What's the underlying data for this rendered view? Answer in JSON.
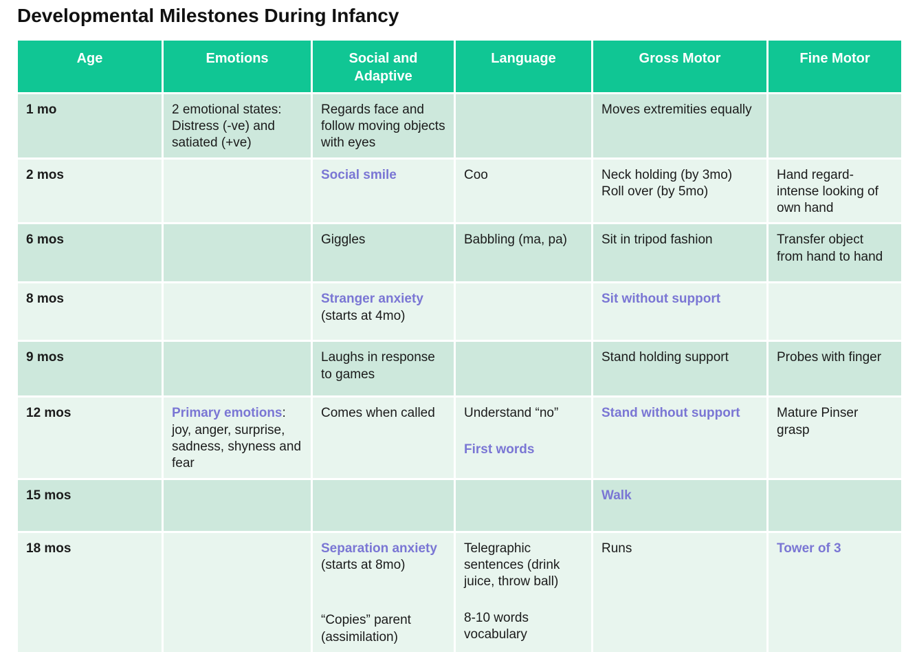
{
  "title": "Developmental Milestones During Infancy",
  "colors": {
    "header_bg": "#10c694",
    "row_alt1_bg": "#cde8dc",
    "row_alt2_bg": "#e8f5ee",
    "highlight_text": "#7a76d4",
    "header_text": "#ffffff",
    "body_text": "#1b1b1b"
  },
  "table": {
    "columns": [
      "Age",
      "Emotions",
      "Social and Adaptive",
      "Language",
      "Gross Motor",
      "Fine Motor"
    ],
    "rows": [
      {
        "age": "1 mo",
        "cells": [
          [
            {
              "segs": [
                {
                  "t": "2 emotional states: Distress (-ve) and satiated (+ve)"
                }
              ]
            }
          ],
          [
            {
              "segs": [
                {
                  "t": "Regards face and follow moving objects with eyes"
                }
              ]
            }
          ],
          [],
          [
            {
              "segs": [
                {
                  "t": "Moves extremities equally"
                }
              ]
            }
          ],
          []
        ]
      },
      {
        "age": "2 mos",
        "cells": [
          [],
          [
            {
              "segs": [
                {
                  "t": "Social smile",
                  "h": true
                }
              ]
            }
          ],
          [
            {
              "segs": [
                {
                  "t": "Coo"
                }
              ]
            }
          ],
          [
            {
              "segs": [
                {
                  "t": "Neck holding (by 3mo)"
                }
              ]
            },
            {
              "segs": [
                {
                  "t": "Roll over (by 5mo)"
                }
              ]
            }
          ],
          [
            {
              "segs": [
                {
                  "t": "Hand regard- intense looking of own hand"
                }
              ]
            }
          ]
        ]
      },
      {
        "age": "6 mos",
        "cells": [
          [],
          [
            {
              "segs": [
                {
                  "t": "Giggles"
                }
              ]
            }
          ],
          [
            {
              "segs": [
                {
                  "t": "Babbling (ma, pa)"
                }
              ]
            }
          ],
          [
            {
              "segs": [
                {
                  "t": "Sit in tripod fashion"
                }
              ]
            }
          ],
          [
            {
              "segs": [
                {
                  "t": "Transfer object from hand to hand"
                }
              ]
            }
          ]
        ]
      },
      {
        "age": "8 mos",
        "cells": [
          [],
          [
            {
              "segs": [
                {
                  "t": "Stranger anxiety",
                  "h": true
                }
              ]
            },
            {
              "segs": [
                {
                  "t": "(starts at 4mo)"
                }
              ]
            }
          ],
          [],
          [
            {
              "segs": [
                {
                  "t": "Sit without support",
                  "h": true
                }
              ]
            }
          ],
          []
        ]
      },
      {
        "age": "9 mos",
        "cells": [
          [],
          [
            {
              "segs": [
                {
                  "t": "Laughs in response to games"
                }
              ]
            }
          ],
          [],
          [
            {
              "segs": [
                {
                  "t": "Stand holding support"
                }
              ]
            }
          ],
          [
            {
              "segs": [
                {
                  "t": "Probes with finger"
                }
              ]
            }
          ]
        ]
      },
      {
        "age": "12 mos",
        "cells": [
          [
            {
              "segs": [
                {
                  "t": "Primary emotions",
                  "h": true
                },
                {
                  "t": ": joy, anger, surprise, sadness, shyness and fear"
                }
              ]
            }
          ],
          [
            {
              "segs": [
                {
                  "t": "Comes when called"
                }
              ]
            }
          ],
          [
            {
              "segs": [
                {
                  "t": "Understand “no”"
                }
              ]
            },
            {
              "gap": 1,
              "segs": [
                {
                  "t": "First words",
                  "h": true
                }
              ]
            }
          ],
          [
            {
              "segs": [
                {
                  "t": "Stand without support",
                  "h": true
                }
              ]
            }
          ],
          [
            {
              "segs": [
                {
                  "t": "Mature Pinser grasp"
                }
              ]
            }
          ]
        ]
      },
      {
        "age": "15 mos",
        "cells": [
          [],
          [],
          [],
          [
            {
              "segs": [
                {
                  "t": "Walk",
                  "h": true
                }
              ]
            }
          ],
          []
        ]
      },
      {
        "age": "18 mos",
        "cells": [
          [],
          [
            {
              "segs": [
                {
                  "t": "Separation anxiety",
                  "h": true
                }
              ]
            },
            {
              "segs": [
                {
                  "t": "(starts at 8mo)"
                }
              ]
            },
            {
              "gap": 2,
              "segs": [
                {
                  "t": "“Copies” parent (assimilation)"
                }
              ]
            }
          ],
          [
            {
              "segs": [
                {
                  "t": "Telegraphic sentences (drink juice, throw ball)"
                }
              ]
            },
            {
              "gap": 1,
              "segs": [
                {
                  "t": "8-10 words vocabulary"
                }
              ]
            }
          ],
          [
            {
              "segs": [
                {
                  "t": "Runs"
                }
              ]
            }
          ],
          [
            {
              "segs": [
                {
                  "t": "Tower of 3",
                  "h": true
                }
              ]
            }
          ]
        ]
      }
    ]
  }
}
